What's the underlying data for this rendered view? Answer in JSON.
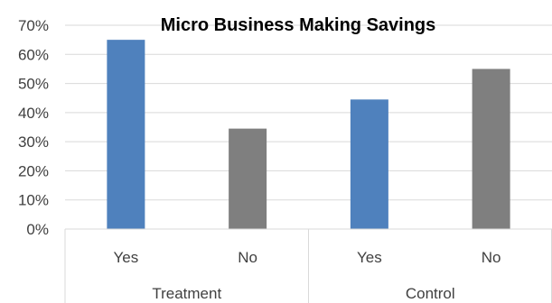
{
  "chart_data": {
    "type": "bar",
    "title": "Micro Business Making Savings",
    "categories": [
      "Yes",
      "No",
      "Yes",
      "No"
    ],
    "groups": [
      {
        "label": "Treatment",
        "categories": [
          "Yes",
          "No"
        ]
      },
      {
        "label": "Control",
        "categories": [
          "Yes",
          "No"
        ]
      }
    ],
    "values": [
      0.65,
      0.345,
      0.445,
      0.55
    ],
    "bar_colors": [
      "#4f81bd",
      "#7f7f7f",
      "#4f81bd",
      "#7f7f7f"
    ],
    "ylim": [
      0,
      0.7
    ],
    "yticks": [
      0,
      0.1,
      0.2,
      0.3,
      0.4,
      0.5,
      0.6,
      0.7
    ],
    "ytick_labels": [
      "0%",
      "10%",
      "20%",
      "30%",
      "40%",
      "50%",
      "60%",
      "70%"
    ],
    "xlabel": "",
    "ylabel": "",
    "grid": true,
    "legend": "none"
  }
}
